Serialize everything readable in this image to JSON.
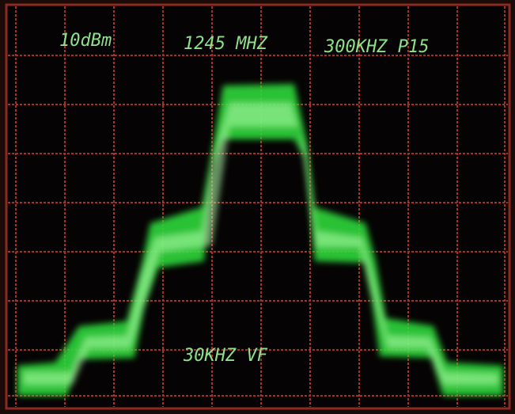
{
  "header": {
    "labels": [
      "10dBm",
      "1245 MHZ",
      "300KHZ P15"
    ]
  },
  "footer": {
    "labels": [
      "30KHZ VF"
    ]
  }
}
